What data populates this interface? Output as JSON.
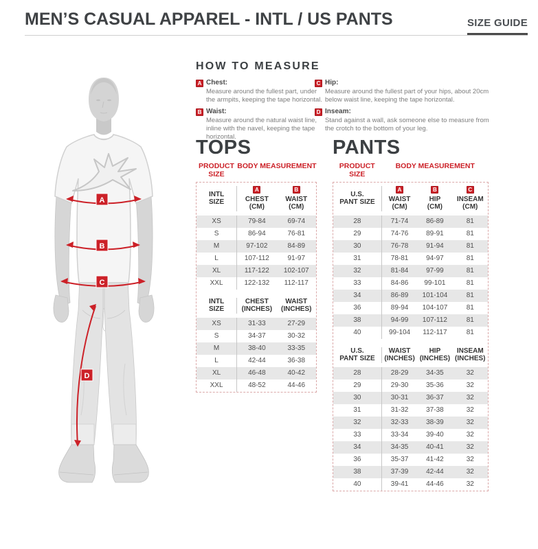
{
  "header": {
    "title": "MEN’S CASUAL APPAREL - INTL / US PANTS",
    "size_guide_label": "SIZE GUIDE"
  },
  "how_to_measure": {
    "heading": "HOW TO MEASURE",
    "items": [
      {
        "letter": "A",
        "label": "Chest:",
        "text": "Measure around the fullest part, under the armpits, keeping the tape horizontal."
      },
      {
        "letter": "B",
        "label": "Waist:",
        "text": "Measure around the natural waist line, inline with the navel, keeping the tape horizontal."
      },
      {
        "letter": "C",
        "label": "Hip:",
        "text": "Measure around the fullest part of your hips, about 20cm below waist line, keeping the tape horizontal."
      },
      {
        "letter": "D",
        "label": "Inseam:",
        "text": "Stand against a wall, ask someone else to measure from the crotch to the bottom of your leg."
      }
    ]
  },
  "figure": {
    "markers": [
      "A",
      "B",
      "C",
      "D"
    ]
  },
  "tops": {
    "heading": "TOPS",
    "product_size_label": "PRODUCT SIZE",
    "body_measurement_label": "BODY MEASUREMENT",
    "sections": [
      {
        "size_header": [
          "INTL",
          "SIZE"
        ],
        "columns": [
          {
            "badge": "A",
            "name": "CHEST",
            "unit": "(CM)"
          },
          {
            "badge": "B",
            "name": "WAIST",
            "unit": "(CM)"
          }
        ],
        "rows": [
          [
            "XS",
            "79-84",
            "69-74"
          ],
          [
            "S",
            "86-94",
            "76-81"
          ],
          [
            "M",
            "97-102",
            "84-89"
          ],
          [
            "L",
            "107-112",
            "91-97"
          ],
          [
            "XL",
            "117-122",
            "102-107"
          ],
          [
            "XXL",
            "122-132",
            "112-117"
          ]
        ]
      },
      {
        "size_header": [
          "INTL",
          "SIZE"
        ],
        "columns": [
          {
            "name": "CHEST",
            "unit": "(INCHES)"
          },
          {
            "name": "WAIST",
            "unit": "(INCHES)"
          }
        ],
        "rows": [
          [
            "XS",
            "31-33",
            "27-29"
          ],
          [
            "S",
            "34-37",
            "30-32"
          ],
          [
            "M",
            "38-40",
            "33-35"
          ],
          [
            "L",
            "42-44",
            "36-38"
          ],
          [
            "XL",
            "46-48",
            "40-42"
          ],
          [
            "XXL",
            "48-52",
            "44-46"
          ]
        ]
      }
    ]
  },
  "pants": {
    "heading": "PANTS",
    "product_size_label": "PRODUCT SIZE",
    "body_measurement_label": "BODY MEASUREMENT",
    "sections": [
      {
        "size_header": [
          "U.S.",
          "PANT SIZE"
        ],
        "columns": [
          {
            "badge": "A",
            "name": "WAIST",
            "unit": "(CM)"
          },
          {
            "badge": "B",
            "name": "HIP",
            "unit": "(CM)"
          },
          {
            "badge": "C",
            "name": "INSEAM",
            "unit": "(CM)"
          }
        ],
        "rows": [
          [
            "28",
            "71-74",
            "86-89",
            "81"
          ],
          [
            "29",
            "74-76",
            "89-91",
            "81"
          ],
          [
            "30",
            "76-78",
            "91-94",
            "81"
          ],
          [
            "31",
            "78-81",
            "94-97",
            "81"
          ],
          [
            "32",
            "81-84",
            "97-99",
            "81"
          ],
          [
            "33",
            "84-86",
            "99-101",
            "81"
          ],
          [
            "34",
            "86-89",
            "101-104",
            "81"
          ],
          [
            "36",
            "89-94",
            "104-107",
            "81"
          ],
          [
            "38",
            "94-99",
            "107-112",
            "81"
          ],
          [
            "40",
            "99-104",
            "112-117",
            "81"
          ]
        ]
      },
      {
        "size_header": [
          "U.S.",
          "PANT SIZE"
        ],
        "columns": [
          {
            "name": "WAIST",
            "unit": "(INCHES)"
          },
          {
            "name": "HIP",
            "unit": "(INCHES)"
          },
          {
            "name": "INSEAM",
            "unit": "(INCHES)"
          }
        ],
        "rows": [
          [
            "28",
            "28-29",
            "34-35",
            "32"
          ],
          [
            "29",
            "29-30",
            "35-36",
            "32"
          ],
          [
            "30",
            "30-31",
            "36-37",
            "32"
          ],
          [
            "31",
            "31-32",
            "37-38",
            "32"
          ],
          [
            "32",
            "32-33",
            "38-39",
            "32"
          ],
          [
            "33",
            "33-34",
            "39-40",
            "32"
          ],
          [
            "34",
            "34-35",
            "40-41",
            "32"
          ],
          [
            "36",
            "35-37",
            "41-42",
            "32"
          ],
          [
            "38",
            "37-39",
            "42-44",
            "32"
          ],
          [
            "40",
            "39-41",
            "44-46",
            "32"
          ]
        ]
      }
    ]
  },
  "colors": {
    "accent_red": "#cc2128",
    "title_gray": "#3f4245",
    "row_shade": "#e7e7e7"
  }
}
